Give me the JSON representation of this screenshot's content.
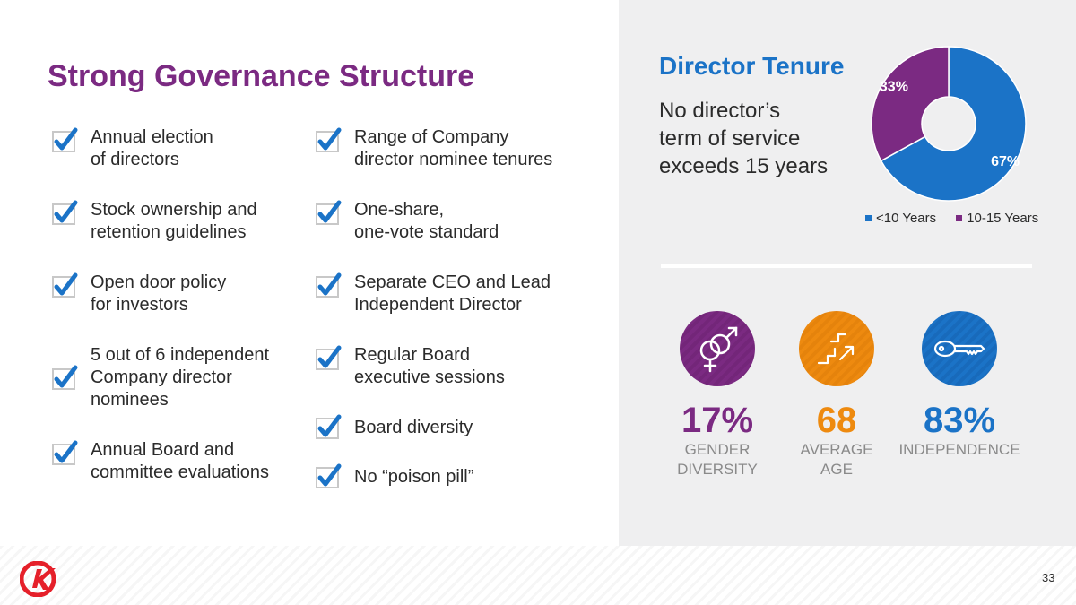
{
  "title": "Strong Governance Structure",
  "colors": {
    "purple": "#7b2a82",
    "blue": "#1b73c7",
    "orange": "#ee8a0f",
    "logo_red": "#e5202a"
  },
  "left_column": [
    {
      "text": "Annual election\nof directors",
      "icon": "checkbox-checked-icon"
    },
    {
      "text": "Stock ownership and\nretention guidelines",
      "icon": "checkbox-checked-icon"
    },
    {
      "text": "Open door policy\nfor investors",
      "icon": "checkbox-checked-icon"
    },
    {
      "text": "5 out of 6 independent\nCompany director\nnominees",
      "icon": "checkbox-checked-icon"
    },
    {
      "text": "Annual Board and\ncommittee evaluations",
      "icon": "checkbox-checked-icon"
    }
  ],
  "right_column": [
    {
      "text": "Range of Company\ndirector nominee tenures",
      "icon": "checkbox-checked-icon"
    },
    {
      "text": "One-share,\none-vote standard",
      "icon": "checkbox-checked-icon"
    },
    {
      "text": "Separate CEO and Lead\nIndependent Director",
      "icon": "checkbox-checked-icon"
    },
    {
      "text": "Regular Board\nexecutive sessions",
      "icon": "checkbox-checked-icon"
    },
    {
      "text": "Board diversity",
      "icon": "checkbox-checked-icon"
    },
    {
      "text": "No “poison pill”",
      "icon": "checkbox-checked-icon"
    }
  ],
  "tenure": {
    "title": "Director Tenure",
    "text": "No director’s\nterm of service\nexceeds 15 years"
  },
  "chart_data": {
    "type": "pie",
    "title": "Director Tenure",
    "categories": [
      "<10 Years",
      "10-15 Years"
    ],
    "values": [
      67,
      33
    ],
    "labels": [
      "67%",
      "33%"
    ],
    "colors": [
      "#1b73c7",
      "#7b2a82"
    ],
    "legend": "bottom"
  },
  "stats": [
    {
      "value": "17%",
      "label": "GENDER\nDIVERSITY",
      "icon": "gender-symbol-icon",
      "color": "#7b2a82"
    },
    {
      "value": "68",
      "label": "AVERAGE\nAGE",
      "icon": "stairs-arrow-icon",
      "color": "#ee8a0f"
    },
    {
      "value": "83%",
      "label": "INDEPENDENCE",
      "icon": "key-icon",
      "color": "#1b73c7"
    }
  ],
  "page_number": "33"
}
